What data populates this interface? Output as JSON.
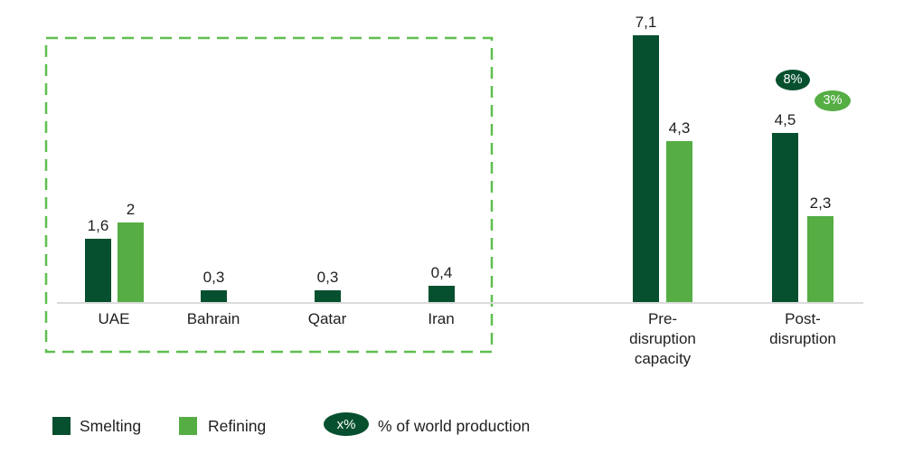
{
  "colors": {
    "smelting": "#07502F",
    "refining": "#55AD44",
    "highlight_box": "#5FBE4F",
    "axis": "#DBDBDB",
    "text": "#1F1F1F",
    "badge_text": "#FFFFFF"
  },
  "chart_data": [
    {
      "type": "bar",
      "title": "",
      "categories": [
        "UAE",
        "Bahrain",
        "Qatar",
        "Iran"
      ],
      "series": [
        {
          "name": "Smelting",
          "values": [
            1.6,
            0.3,
            0.3,
            0.4
          ],
          "labels": [
            "1,6",
            "0,3",
            "0,3",
            "0,4"
          ]
        },
        {
          "name": "Refining",
          "values": [
            2,
            null,
            null,
            null
          ],
          "labels": [
            "2",
            null,
            null,
            null
          ]
        }
      ],
      "highlighted_with_dashed_box": true,
      "grid": false,
      "ylim": [
        0,
        7.5
      ]
    },
    {
      "type": "bar",
      "title": "",
      "categories": [
        "Pre-\ndisruption\ncapacity",
        "Post-\ndisruption"
      ],
      "series": [
        {
          "name": "Smelting",
          "values": [
            7.1,
            4.5
          ],
          "labels": [
            "7,1",
            "4,5"
          ]
        },
        {
          "name": "Refining",
          "values": [
            4.3,
            2.3
          ],
          "labels": [
            "4,3",
            "2,3"
          ]
        }
      ],
      "badges": [
        {
          "label": "8%",
          "series": "Smelting",
          "category_index": 1
        },
        {
          "label": "3%",
          "series": "Refining",
          "category_index": 1
        }
      ],
      "grid": false,
      "ylim": [
        0,
        7.5
      ]
    }
  ],
  "legend": {
    "position": "bottom",
    "items": [
      {
        "label": "Smelting",
        "swatch": "smelting"
      },
      {
        "label": "Refining",
        "swatch": "refining"
      },
      {
        "badge": "x%",
        "label": "% of world production",
        "swatch": "smelting"
      }
    ]
  }
}
